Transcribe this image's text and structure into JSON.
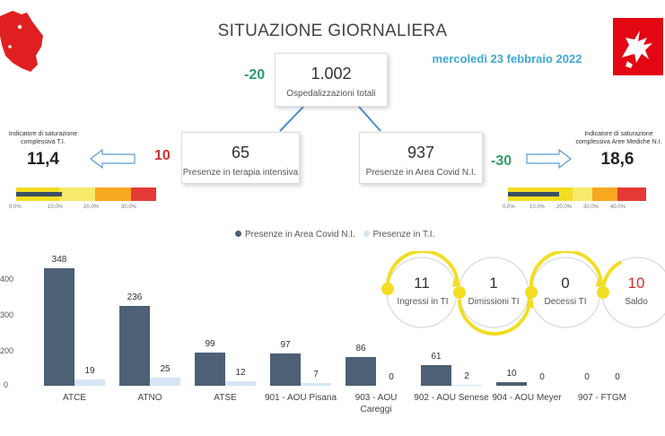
{
  "header": {
    "title": "SITUAZIONE GIORNALIERA",
    "date": "mercoledì 23 febbraio 2022"
  },
  "colors": {
    "map_red": "#e02020",
    "flag_red": "#e30613",
    "bar_dark": "#4d6075",
    "bar_light": "#d6e6f5",
    "green": "#2e9e6b",
    "red": "#d32f2f",
    "yellow": "#f2dd22",
    "date_blue": "#3fa7d6"
  },
  "total_hospitalizations": {
    "value": "1.002",
    "label": "Ospedalizzazioni totali",
    "delta": "-20"
  },
  "intensive_care": {
    "value": "65",
    "label": "Presenze in terapia intensiva",
    "delta": "10"
  },
  "covid_area": {
    "value": "937",
    "label": "Presenze in Area Covid N.I.",
    "delta": "-30"
  },
  "saturation_ti": {
    "title_line1": "Indicatore di saturazione",
    "title_line2": "complessiva T.I.",
    "value": "11,4",
    "level": 11.4,
    "ticks": [
      "0.0%",
      "10.0%",
      "20.0%",
      "30.0%"
    ]
  },
  "saturation_medical": {
    "title_line1": "Indicatore di saturazione",
    "title_line2": "complessiva Aree Mediche N.I.",
    "value": "18,6",
    "level": 18.6,
    "ticks": [
      "0.0%",
      "10.0%",
      "20.0%",
      "30.0%",
      "40.0%"
    ]
  },
  "flows": [
    {
      "value": "11",
      "label": "Ingressi in TI"
    },
    {
      "value": "1",
      "label": "Dimissioni TI"
    },
    {
      "value": "0",
      "label": "Decessi TI"
    },
    {
      "value": "10",
      "label": "Saldo"
    }
  ],
  "chart_data": {
    "type": "bar",
    "categories": [
      "ATCE",
      "ATNO",
      "ATSE",
      "901 - AOU Pisana",
      "903 - AOU Careggi",
      "902 - AOU Senese",
      "904 - AOU Meyer",
      "907 - FTGM"
    ],
    "series": [
      {
        "name": "Presenze in Area Covid N.I.",
        "values": [
          348,
          236,
          99,
          97,
          86,
          61,
          10,
          0
        ]
      },
      {
        "name": "Presenze in T.I.",
        "values": [
          19,
          25,
          12,
          7,
          0,
          2,
          0,
          0
        ]
      }
    ],
    "y_ticks": [
      "400",
      "300",
      "200",
      "0"
    ],
    "ylim": [
      0,
      400
    ],
    "legend_position": "top-center",
    "grid": false
  }
}
